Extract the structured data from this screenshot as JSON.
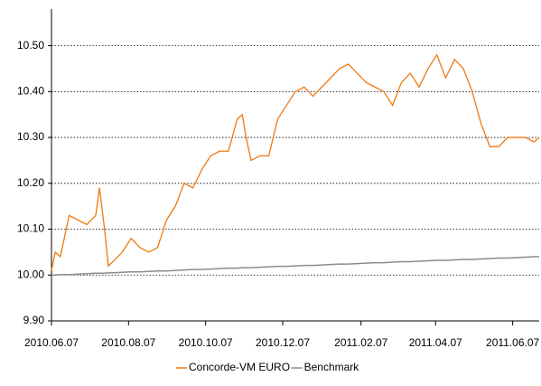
{
  "chart_data": {
    "type": "line",
    "x": [
      "2010.06.07",
      "2010.06.10",
      "2010.06.14",
      "2010.06.21",
      "2010.06.28",
      "2010.07.05",
      "2010.07.12",
      "2010.07.15",
      "2010.07.19",
      "2010.07.22",
      "2010.07.26",
      "2010.08.02",
      "2010.08.09",
      "2010.08.16",
      "2010.08.23",
      "2010.08.30",
      "2010.09.06",
      "2010.09.13",
      "2010.09.20",
      "2010.09.27",
      "2010.10.04",
      "2010.10.11",
      "2010.10.18",
      "2010.10.25",
      "2010.11.01",
      "2010.11.05",
      "2010.11.08",
      "2010.11.12",
      "2010.11.19",
      "2010.11.26",
      "2010.12.03",
      "2010.12.10",
      "2010.12.17",
      "2010.12.24",
      "2010.12.31",
      "2011.01.07",
      "2011.01.14",
      "2011.01.21",
      "2011.01.28",
      "2011.02.04",
      "2011.02.11",
      "2011.02.18",
      "2011.02.25",
      "2011.03.04",
      "2011.03.11",
      "2011.03.18",
      "2011.03.25",
      "2011.04.01",
      "2011.04.08",
      "2011.04.15",
      "2011.04.22",
      "2011.04.29",
      "2011.05.06",
      "2011.05.13",
      "2011.05.20",
      "2011.05.27",
      "2011.06.03",
      "2011.06.10",
      "2011.06.17",
      "2011.06.24",
      "2011.06.28"
    ],
    "series": [
      {
        "name": "Concorde-VM EURO",
        "color": "#f07810",
        "values": [
          10.01,
          10.05,
          10.04,
          10.13,
          10.12,
          10.11,
          10.13,
          10.19,
          10.1,
          10.02,
          10.03,
          10.05,
          10.08,
          10.06,
          10.05,
          10.06,
          10.12,
          10.15,
          10.2,
          10.19,
          10.23,
          10.26,
          10.27,
          10.27,
          10.34,
          10.35,
          10.3,
          10.25,
          10.26,
          10.26,
          10.34,
          10.37,
          10.4,
          10.41,
          10.39,
          10.41,
          10.43,
          10.45,
          10.46,
          10.44,
          10.42,
          10.41,
          10.4,
          10.37,
          10.42,
          10.44,
          10.41,
          10.45,
          10.48,
          10.43,
          10.47,
          10.45,
          10.4,
          10.33,
          10.28,
          10.28,
          10.3,
          10.3,
          10.3,
          10.29,
          10.3
        ]
      },
      {
        "name": "Benchmark",
        "color": "#8c8c8c",
        "values": [
          10.0,
          10.0,
          10.001,
          10.001,
          10.002,
          10.003,
          10.004,
          10.004,
          10.004,
          10.005,
          10.005,
          10.006,
          10.007,
          10.007,
          10.008,
          10.009,
          10.009,
          10.01,
          10.011,
          10.012,
          10.012,
          10.013,
          10.014,
          10.015,
          10.015,
          10.016,
          10.016,
          10.016,
          10.017,
          10.018,
          10.019,
          10.019,
          10.02,
          10.021,
          10.021,
          10.022,
          10.023,
          10.024,
          10.024,
          10.025,
          10.026,
          10.027,
          10.027,
          10.028,
          10.029,
          10.029,
          10.03,
          10.031,
          10.032,
          10.032,
          10.033,
          10.034,
          10.034,
          10.035,
          10.036,
          10.037,
          10.037,
          10.038,
          10.039,
          10.04,
          10.04
        ]
      }
    ],
    "xlim": [
      "2010.06.07",
      "2011.06.28"
    ],
    "xticks": [
      "2010.06.07",
      "2010.08.07",
      "2010.10.07",
      "2010.12.07",
      "2011.02.07",
      "2011.04.07",
      "2011.06.07"
    ],
    "ylim": [
      9.9,
      10.58
    ],
    "yticks": [
      {
        "value": 9.9,
        "label": "9.90"
      },
      {
        "value": 10.0,
        "label": "10.00"
      },
      {
        "value": 10.1,
        "label": "10.10"
      },
      {
        "value": 10.2,
        "label": "10.20"
      },
      {
        "value": 10.3,
        "label": "10.30"
      },
      {
        "value": 10.4,
        "label": "10.40"
      },
      {
        "value": 10.5,
        "label": "10.50"
      }
    ],
    "grid": true,
    "legend": "bottom"
  }
}
